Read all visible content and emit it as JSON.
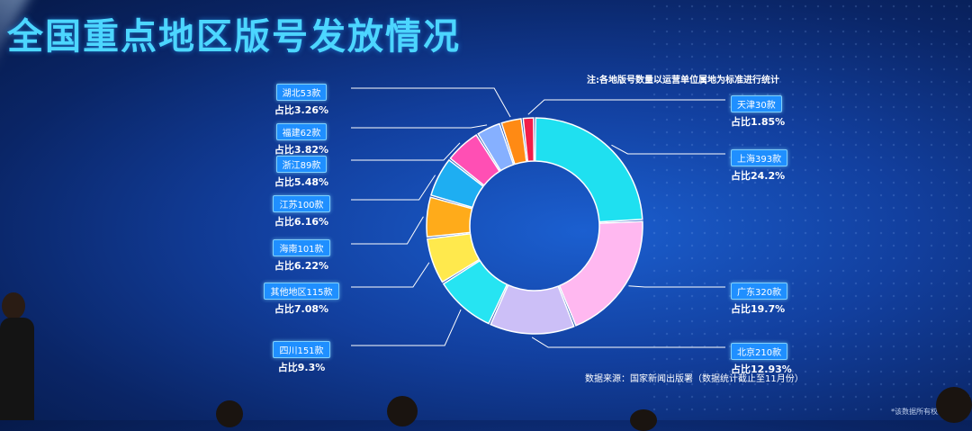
{
  "title": "全国重点地区版号发放情况",
  "note": "注:各地版号数量以运营单位属地为标准进行统计",
  "source": "数据来源：国家新闻出版署（数据统计截止至11月份）",
  "copyright": "*该数据所有权归广东…",
  "chart_data": {
    "type": "pie",
    "donut": true,
    "unit": "款",
    "categories": [
      "上海",
      "广东",
      "北京",
      "四川",
      "其他地区",
      "海南",
      "江苏",
      "浙江",
      "福建",
      "湖北",
      "天津"
    ],
    "values": [
      393,
      320,
      210,
      151,
      115,
      101,
      100,
      89,
      62,
      53,
      30
    ],
    "badges": [
      "上海393款",
      "广东320款",
      "北京210款",
      "四川151款",
      "其他地区115款",
      "海南101款",
      "江苏100款",
      "浙江89款",
      "福建62款",
      "湖北53款",
      "天津30款"
    ],
    "shares": [
      "占比24.2%",
      "占比19.7%",
      "占比12.93%",
      "占比9.3%",
      "占比7.08%",
      "占比6.22%",
      "占比6.16%",
      "占比5.48%",
      "占比3.82%",
      "占比3.26%",
      "占比1.85%"
    ],
    "colors": [
      "#1fe0f0",
      "#ffb8f0",
      "#ccbff7",
      "#26e4f2",
      "#ffe94d",
      "#ffab1a",
      "#1eaef2",
      "#ff4fb4",
      "#86b0ff",
      "#ff8a14",
      "#f21d48"
    ]
  }
}
